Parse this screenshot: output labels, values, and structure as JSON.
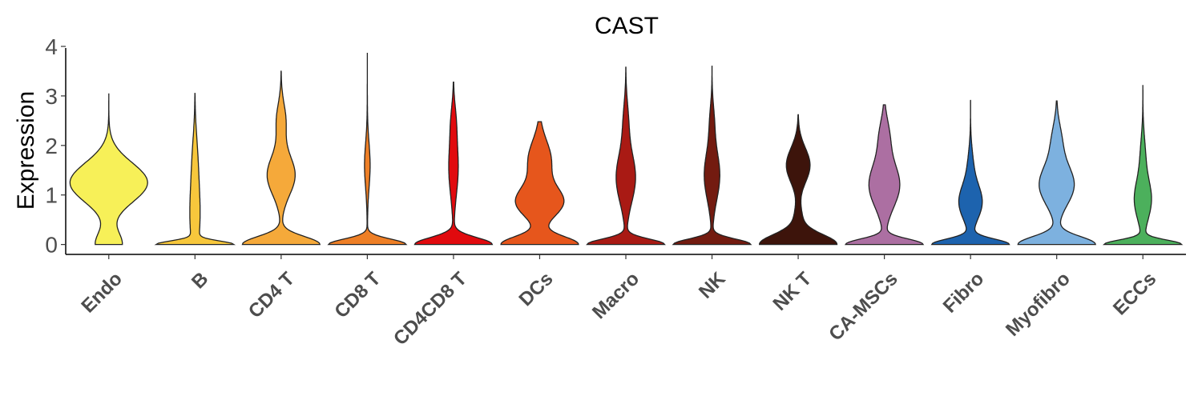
{
  "chart_data": {
    "type": "violin",
    "title": "CAST",
    "ylabel": "Expression",
    "xlabel": "",
    "ylim": [
      -0.2,
      4.0
    ],
    "yticks": [
      0,
      1,
      2,
      3,
      4
    ],
    "grid": false,
    "categories": [
      {
        "name": "Endo",
        "color": "#F7F058",
        "max": 3.05,
        "peaks": [
          [
            0.0,
            0.26,
            0.34
          ],
          [
            1.25,
            0.4,
            1.0
          ]
        ]
      },
      {
        "name": "B",
        "color": "#F7C73C",
        "max": 3.05,
        "peaks": [
          [
            0.0,
            0.07,
            1.0
          ],
          [
            0.6,
            0.7,
            0.14
          ],
          [
            1.8,
            0.5,
            0.05
          ]
        ]
      },
      {
        "name": "CD4 T",
        "color": "#F5A93A",
        "max": 3.5,
        "peaks": [
          [
            0.0,
            0.16,
            1.0
          ],
          [
            1.4,
            0.4,
            0.36
          ],
          [
            2.5,
            0.35,
            0.12
          ]
        ]
      },
      {
        "name": "CD8 T",
        "color": "#EE7F26",
        "max": 3.87,
        "peaks": [
          [
            0.0,
            0.11,
            1.0
          ],
          [
            1.6,
            0.45,
            0.07
          ]
        ]
      },
      {
        "name": "CD4CD8 T",
        "color": "#E10A0E",
        "max": 3.28,
        "peaks": [
          [
            0.0,
            0.14,
            1.0
          ],
          [
            1.55,
            0.55,
            0.12
          ],
          [
            2.5,
            0.35,
            0.05
          ]
        ]
      },
      {
        "name": "DCs",
        "color": "#E6561C",
        "max": 2.48,
        "peaks": [
          [
            0.0,
            0.16,
            1.0
          ],
          [
            0.85,
            0.3,
            0.6
          ],
          [
            1.7,
            0.4,
            0.3
          ]
        ]
      },
      {
        "name": "Macro",
        "color": "#A91A14",
        "max": 3.58,
        "peaks": [
          [
            0.0,
            0.11,
            1.0
          ],
          [
            1.35,
            0.5,
            0.25
          ],
          [
            2.5,
            0.4,
            0.06
          ]
        ]
      },
      {
        "name": "NK",
        "color": "#731B10",
        "max": 3.6,
        "peaks": [
          [
            0.0,
            0.11,
            1.0
          ],
          [
            1.4,
            0.5,
            0.2
          ],
          [
            2.5,
            0.35,
            0.05
          ]
        ]
      },
      {
        "name": "NK T",
        "color": "#3D140B",
        "max": 2.62,
        "peaks": [
          [
            0.0,
            0.2,
            1.0
          ],
          [
            1.6,
            0.35,
            0.31
          ],
          [
            0.5,
            0.25,
            0.1
          ]
        ]
      },
      {
        "name": "CA-MSCs",
        "color": "#AC6FA2",
        "max": 2.82,
        "peaks": [
          [
            0.0,
            0.11,
            1.0
          ],
          [
            1.2,
            0.45,
            0.4
          ],
          [
            2.2,
            0.35,
            0.12
          ]
        ]
      },
      {
        "name": "Fibro",
        "color": "#1D63AE",
        "max": 2.92,
        "peaks": [
          [
            0.0,
            0.11,
            1.0
          ],
          [
            0.85,
            0.35,
            0.3
          ],
          [
            1.6,
            0.35,
            0.06
          ]
        ]
      },
      {
        "name": "Myofibro",
        "color": "#7DB1DF",
        "max": 2.9,
        "peaks": [
          [
            0.0,
            0.16,
            1.0
          ],
          [
            1.2,
            0.4,
            0.45
          ],
          [
            2.1,
            0.35,
            0.12
          ]
        ]
      },
      {
        "name": "ECCs",
        "color": "#4CB05C",
        "max": 3.22,
        "peaks": [
          [
            0.0,
            0.09,
            1.0
          ],
          [
            0.9,
            0.4,
            0.22
          ],
          [
            1.8,
            0.4,
            0.06
          ]
        ]
      }
    ]
  }
}
